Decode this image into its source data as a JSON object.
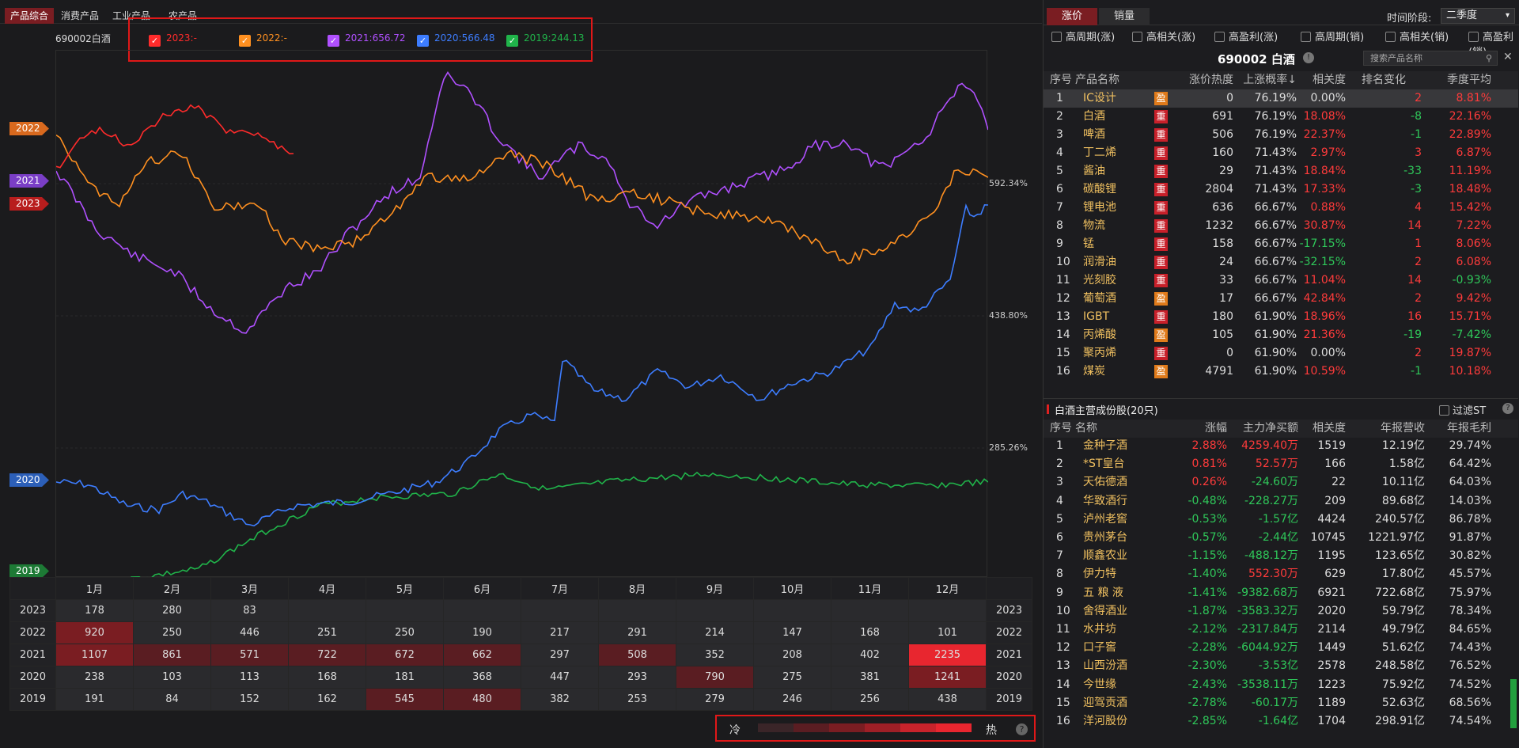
{
  "left": {
    "tabs": [
      "产品综合",
      "消费产品",
      "工业产品",
      "农产品"
    ],
    "product": "690002白酒",
    "legend": [
      {
        "label": "2023:-",
        "color": "#ff2b2b"
      },
      {
        "label": "2022:-",
        "color": "#ff9020"
      },
      {
        "label": "2021:656.72",
        "color": "#b050ff"
      },
      {
        "label": "2020:566.48",
        "color": "#3d7dff"
      },
      {
        "label": "2019:244.13",
        "color": "#20b44a"
      }
    ],
    "y_labels": [
      "592.34%",
      "438.80%",
      "285.26%"
    ],
    "year_tags": [
      {
        "label": "2022",
        "color": "#d8691e"
      },
      {
        "label": "2021",
        "color": "#7a3ec6"
      },
      {
        "label": "2023",
        "color": "#b81d1d"
      },
      {
        "label": "2020",
        "color": "#2c5fb8"
      },
      {
        "label": "2019",
        "color": "#1d7a35"
      }
    ],
    "months": [
      "1月",
      "2月",
      "3月",
      "4月",
      "5月",
      "6月",
      "7月",
      "8月",
      "9月",
      "10月",
      "11月",
      "12月"
    ],
    "heat_rows": [
      {
        "year": "2023",
        "values": [
          "178",
          "280",
          "83",
          "",
          "",
          "",
          "",
          "",
          "",
          "",
          "",
          ""
        ],
        "heat": [
          0,
          0,
          0,
          0,
          0,
          0,
          0,
          0,
          0,
          0,
          0,
          0
        ]
      },
      {
        "year": "2022",
        "values": [
          "920",
          "250",
          "446",
          "251",
          "250",
          "190",
          "217",
          "291",
          "214",
          "147",
          "168",
          "101"
        ],
        "heat": [
          2,
          0,
          0,
          0,
          0,
          0,
          0,
          0,
          0,
          0,
          0,
          0
        ]
      },
      {
        "year": "2021",
        "values": [
          "1107",
          "861",
          "571",
          "722",
          "672",
          "662",
          "297",
          "508",
          "352",
          "208",
          "402",
          "2235"
        ],
        "heat": [
          2,
          1,
          1,
          1,
          1,
          1,
          0,
          1,
          0,
          0,
          0,
          4
        ]
      },
      {
        "year": "2020",
        "values": [
          "238",
          "103",
          "113",
          "168",
          "181",
          "368",
          "447",
          "293",
          "790",
          "275",
          "381",
          "1241"
        ],
        "heat": [
          0,
          0,
          0,
          0,
          0,
          0,
          0,
          0,
          1,
          0,
          0,
          2
        ]
      },
      {
        "year": "2019",
        "values": [
          "191",
          "84",
          "152",
          "162",
          "545",
          "480",
          "382",
          "253",
          "279",
          "246",
          "256",
          "438"
        ],
        "heat": [
          0,
          0,
          0,
          0,
          1,
          1,
          0,
          0,
          0,
          0,
          0,
          0
        ]
      }
    ],
    "scale_cold": "冷",
    "scale_hot": "热",
    "help": "?"
  },
  "right": {
    "tab_price": "涨价",
    "tab_sales": "销量",
    "period_label": "时间阶段:",
    "period_value": "二季度",
    "filters": [
      "高周期(涨)",
      "高相关(涨)",
      "高盈利(涨)",
      "高周期(销)",
      "高相关(销)",
      "高盈利(销)"
    ],
    "title": "690002 白酒",
    "search_placeholder": "搜索产品名称",
    "table1_headers": [
      "序号",
      "产品名称",
      "涨价热度",
      "上涨概率↓",
      "相关度",
      "排名变化",
      "季度平均"
    ],
    "table1_rows": [
      [
        "1",
        "IC设计",
        "盈",
        "0",
        "76.19%",
        "0.00%",
        "2",
        "8.81%"
      ],
      [
        "2",
        "白酒",
        "重",
        "691",
        "76.19%",
        "18.08%",
        "-8",
        "22.16%"
      ],
      [
        "3",
        "啤酒",
        "重",
        "506",
        "76.19%",
        "22.37%",
        "-1",
        "22.89%"
      ],
      [
        "4",
        "丁二烯",
        "重",
        "160",
        "71.43%",
        "2.97%",
        "3",
        "6.87%"
      ],
      [
        "5",
        "酱油",
        "重",
        "29",
        "71.43%",
        "18.84%",
        "-33",
        "11.19%"
      ],
      [
        "6",
        "碳酸锂",
        "重",
        "2804",
        "71.43%",
        "17.33%",
        "-3",
        "18.48%"
      ],
      [
        "7",
        "锂电池",
        "重",
        "636",
        "66.67%",
        "0.88%",
        "4",
        "15.42%"
      ],
      [
        "8",
        "物流",
        "重",
        "1232",
        "66.67%",
        "30.87%",
        "14",
        "7.22%"
      ],
      [
        "9",
        "锰",
        "重",
        "158",
        "66.67%",
        "-17.15%",
        "1",
        "8.06%"
      ],
      [
        "10",
        "润滑油",
        "重",
        "24",
        "66.67%",
        "-32.15%",
        "2",
        "6.08%"
      ],
      [
        "11",
        "光刻胶",
        "重",
        "33",
        "66.67%",
        "11.04%",
        "14",
        "-0.93%"
      ],
      [
        "12",
        "葡萄酒",
        "盈",
        "17",
        "66.67%",
        "42.84%",
        "2",
        "9.42%"
      ],
      [
        "13",
        "IGBT",
        "重",
        "180",
        "61.90%",
        "18.96%",
        "16",
        "15.71%"
      ],
      [
        "14",
        "丙烯酸",
        "盈",
        "105",
        "61.90%",
        "21.36%",
        "-19",
        "-7.42%"
      ],
      [
        "15",
        "聚丙烯",
        "重",
        "0",
        "61.90%",
        "0.00%",
        "2",
        "19.87%"
      ],
      [
        "16",
        "煤炭",
        "盈",
        "4791",
        "61.90%",
        "10.59%",
        "-1",
        "10.18%"
      ]
    ],
    "section2_title": "白酒主营成份股(20只)",
    "filter_st": "过滤ST",
    "table2_headers": [
      "序号",
      "名称",
      "涨幅",
      "主力净买额",
      "相关度",
      "年报营收",
      "年报毛利"
    ],
    "table2_rows": [
      [
        "1",
        "金种子酒",
        "2.88%",
        "4259.40万",
        "1519",
        "12.19亿",
        "29.74%"
      ],
      [
        "2",
        "*ST皇台",
        "0.81%",
        "52.57万",
        "166",
        "1.58亿",
        "64.42%"
      ],
      [
        "3",
        "天佑德酒",
        "0.26%",
        "-24.60万",
        "22",
        "10.11亿",
        "64.03%"
      ],
      [
        "4",
        "华致酒行",
        "-0.48%",
        "-228.27万",
        "209",
        "89.68亿",
        "14.03%"
      ],
      [
        "5",
        "泸州老窖",
        "-0.53%",
        "-1.57亿",
        "4424",
        "240.57亿",
        "86.78%"
      ],
      [
        "6",
        "贵州茅台",
        "-0.57%",
        "-2.44亿",
        "10745",
        "1221.97亿",
        "91.87%"
      ],
      [
        "7",
        "顺鑫农业",
        "-1.15%",
        "-488.12万",
        "1195",
        "123.65亿",
        "30.82%"
      ],
      [
        "8",
        "伊力特",
        "-1.40%",
        "552.30万",
        "629",
        "17.80亿",
        "45.57%"
      ],
      [
        "9",
        "五 粮 液",
        "-1.41%",
        "-9382.68万",
        "6921",
        "722.68亿",
        "75.97%"
      ],
      [
        "10",
        "舍得酒业",
        "-1.87%",
        "-3583.32万",
        "2020",
        "59.79亿",
        "78.34%"
      ],
      [
        "11",
        "水井坊",
        "-2.12%",
        "-2317.84万",
        "2114",
        "49.79亿",
        "84.65%"
      ],
      [
        "12",
        "口子窖",
        "-2.28%",
        "-6044.92万",
        "1449",
        "51.62亿",
        "74.43%"
      ],
      [
        "13",
        "山西汾酒",
        "-2.30%",
        "-3.53亿",
        "2578",
        "248.58亿",
        "76.52%"
      ],
      [
        "14",
        "今世缘",
        "-2.43%",
        "-3538.11万",
        "1223",
        "75.92亿",
        "74.52%"
      ],
      [
        "15",
        "迎驾贡酒",
        "-2.78%",
        "-60.17万",
        "1189",
        "52.63亿",
        "68.56%"
      ],
      [
        "16",
        "洋河股份",
        "-2.85%",
        "-1.64亿",
        "1704",
        "298.91亿",
        "74.54%"
      ]
    ]
  }
}
